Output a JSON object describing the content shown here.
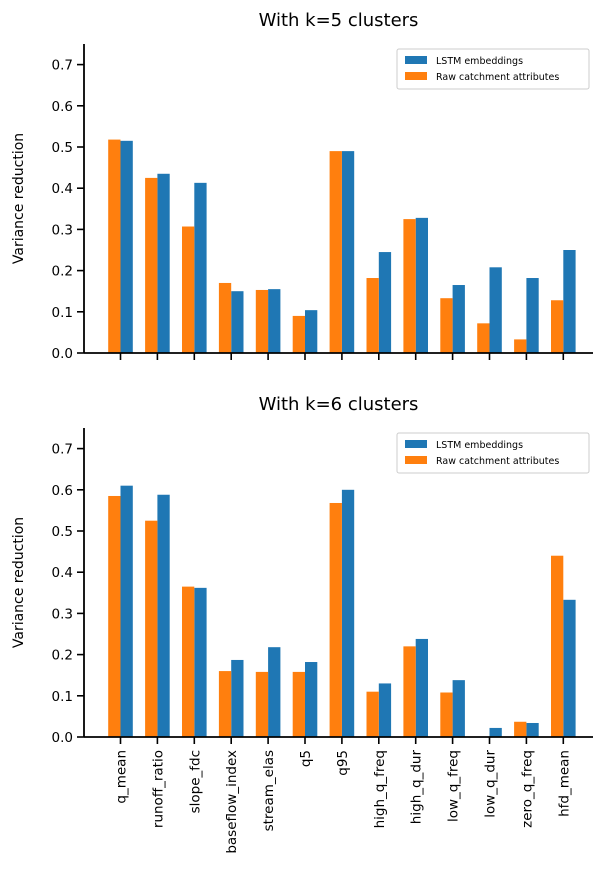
{
  "chart_data": [
    {
      "type": "bar",
      "title": "With k=5 clusters",
      "xlabel": "",
      "ylabel": "Variance reduction",
      "ylim": [
        0,
        0.75
      ],
      "yticks": [
        "0.0",
        "0.1",
        "0.2",
        "0.3",
        "0.4",
        "0.5",
        "0.6",
        "0.7"
      ],
      "categories": [
        "q_mean",
        "runoff_ratio",
        "slope_fdc",
        "baseflow_index",
        "stream_elas",
        "q5",
        "q95",
        "high_q_freq",
        "high_q_dur",
        "low_q_freq",
        "low_q_dur",
        "zero_q_freq",
        "hfd_mean"
      ],
      "show_xticklabels": false,
      "legend_position": "top-right",
      "series": [
        {
          "name": "LSTM embeddings",
          "color": "#1f77b4",
          "values": [
            0.515,
            0.435,
            0.413,
            0.15,
            0.155,
            0.104,
            0.49,
            0.245,
            0.328,
            0.165,
            0.208,
            0.182,
            0.25
          ]
        },
        {
          "name": "Raw catchment attributes",
          "color": "#ff7f0e",
          "values": [
            0.518,
            0.425,
            0.307,
            0.17,
            0.153,
            0.09,
            0.49,
            0.182,
            0.325,
            0.133,
            0.072,
            0.033,
            0.128
          ]
        }
      ]
    },
    {
      "type": "bar",
      "title": "With k=6 clusters",
      "xlabel": "",
      "ylabel": "Variance reduction",
      "ylim": [
        0,
        0.75
      ],
      "yticks": [
        "0.0",
        "0.1",
        "0.2",
        "0.3",
        "0.4",
        "0.5",
        "0.6",
        "0.7"
      ],
      "categories": [
        "q_mean",
        "runoff_ratio",
        "slope_fdc",
        "baseflow_index",
        "stream_elas",
        "q5",
        "q95",
        "high_q_freq",
        "high_q_dur",
        "low_q_freq",
        "low_q_dur",
        "zero_q_freq",
        "hfd_mean"
      ],
      "show_xticklabels": true,
      "legend_position": "top-right",
      "series": [
        {
          "name": "LSTM embeddings",
          "color": "#1f77b4",
          "values": [
            0.61,
            0.588,
            0.362,
            0.187,
            0.218,
            0.182,
            0.6,
            0.13,
            0.238,
            0.138,
            0.022,
            0.034,
            0.333
          ]
        },
        {
          "name": "Raw catchment attributes",
          "color": "#ff7f0e",
          "values": [
            0.585,
            0.525,
            0.365,
            0.16,
            0.158,
            0.158,
            0.568,
            0.11,
            0.22,
            0.108,
            0.0,
            0.037,
            0.44
          ]
        }
      ]
    }
  ]
}
